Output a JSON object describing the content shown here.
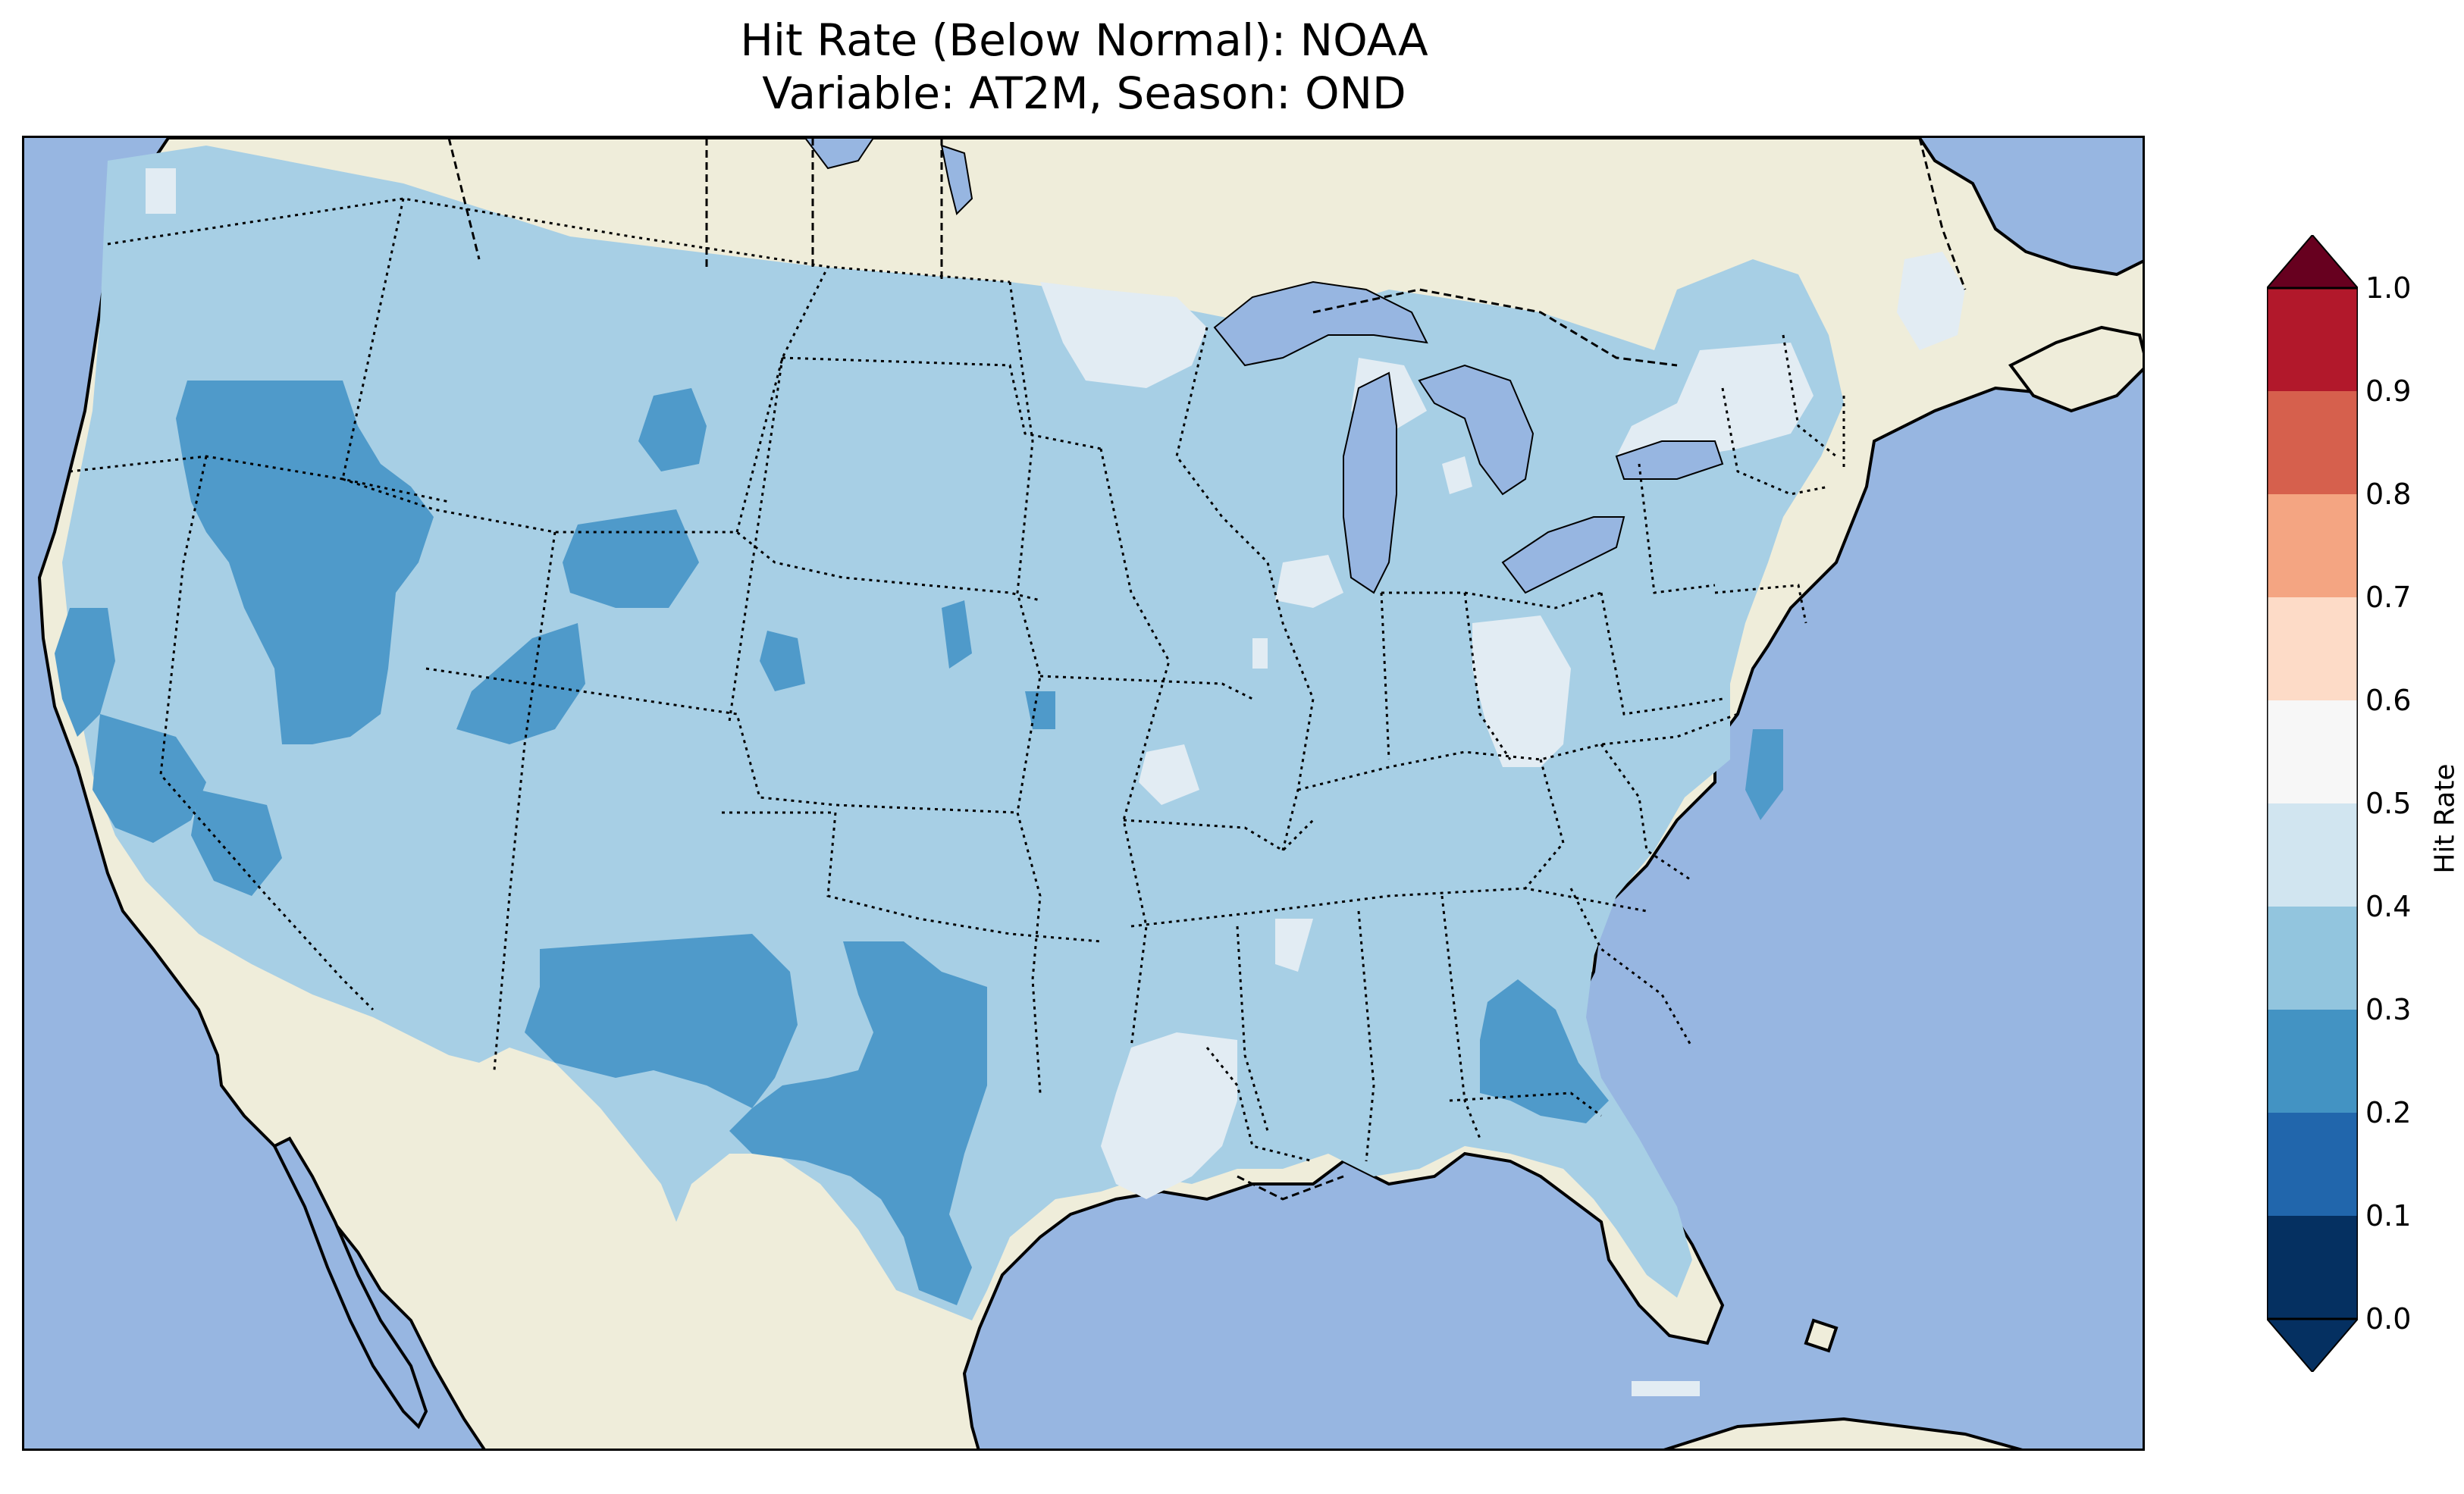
{
  "title": {
    "line1": "Hit Rate (Below Normal): NOAA",
    "line2": "Variable: AT2M, Season: OND"
  },
  "colors": {
    "ocean": "#97b6e1",
    "land": "#efedda",
    "class_0.2_0.3": "#4f9aca",
    "class_0.3_0.4": "#a7cfe5",
    "class_0.4_0.5": "#e2ecf3"
  },
  "colorbar": {
    "label": "Hit Rate",
    "ticks": [
      "0.0",
      "0.1",
      "0.2",
      "0.3",
      "0.4",
      "0.5",
      "0.6",
      "0.7",
      "0.8",
      "0.9",
      "1.0"
    ],
    "bins": [
      {
        "from": 0.0,
        "to": 0.1,
        "color": "#053061"
      },
      {
        "from": 0.1,
        "to": 0.2,
        "color": "#2166ac"
      },
      {
        "from": 0.2,
        "to": 0.3,
        "color": "#4393c3"
      },
      {
        "from": 0.3,
        "to": 0.4,
        "color": "#92c5de"
      },
      {
        "from": 0.4,
        "to": 0.5,
        "color": "#d1e5f0"
      },
      {
        "from": 0.5,
        "to": 0.6,
        "color": "#f7f7f7"
      },
      {
        "from": 0.6,
        "to": 0.7,
        "color": "#fddbc7"
      },
      {
        "from": 0.7,
        "to": 0.8,
        "color": "#f4a582"
      },
      {
        "from": 0.8,
        "to": 0.9,
        "color": "#d6604d"
      },
      {
        "from": 0.9,
        "to": 1.0,
        "color": "#b2182b"
      }
    ],
    "over_color": "#67001f",
    "under_color": "#053061"
  }
}
